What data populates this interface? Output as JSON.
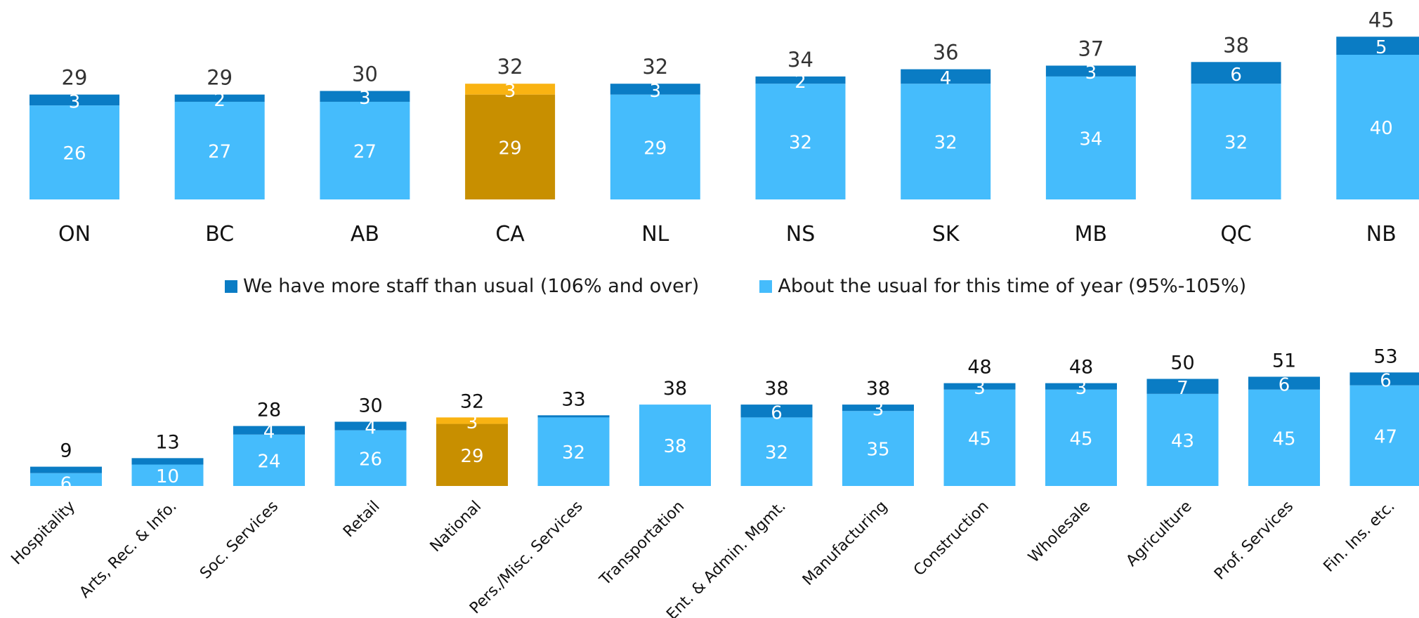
{
  "colors": {
    "more_staff": "#0A7CC4",
    "usual": "#45BCFC",
    "highlight_more": "#F9B312",
    "highlight_usual": "#C88F00",
    "segment_label": "#ffffff",
    "total_label": "#333333",
    "total_label_bottom": "#111111",
    "category_label": "#111111"
  },
  "legend": {
    "more_staff": "We have more staff than usual (106% and over)",
    "usual": "About the usual for this time of year (95%-105%)"
  },
  "chart_data": [
    {
      "type": "bar",
      "stacked": true,
      "categories": [
        "ON",
        "BC",
        "AB",
        "CA",
        "NL",
        "NS",
        "SK",
        "MB",
        "QC",
        "NB"
      ],
      "highlight": "CA",
      "series": [
        {
          "name": "About the usual for this time of year (95%-105%)",
          "values": [
            26,
            27,
            27,
            29,
            29,
            32,
            32,
            34,
            32,
            40
          ]
        },
        {
          "name": "We have more staff than usual (106% and over)",
          "values": [
            3,
            2,
            3,
            3,
            3,
            2,
            4,
            3,
            6,
            5
          ]
        }
      ],
      "totals": [
        29,
        29,
        30,
        32,
        32,
        34,
        36,
        37,
        38,
        45
      ],
      "ylim": [
        0,
        45
      ]
    },
    {
      "type": "bar",
      "stacked": true,
      "categories": [
        "Hospitality",
        "Arts, Rec. & Info.",
        "Soc. Services",
        "Retail",
        "National",
        "Pers./Misc. Services",
        "Transportation",
        "Ent. & Admin. Mgmt.",
        "Manufacturing",
        "Construction",
        "Wholesale",
        "Agriculture",
        "Prof. Services",
        "Fin. Ins. etc."
      ],
      "highlight": "National",
      "series": [
        {
          "name": "About the usual for this time of year (95%-105%)",
          "values": [
            6,
            10,
            24,
            26,
            29,
            32,
            38,
            32,
            35,
            45,
            45,
            43,
            45,
            47
          ]
        },
        {
          "name": "We have more staff than usual (106% and over)",
          "values": [
            3,
            3,
            4,
            4,
            3,
            1,
            0,
            6,
            3,
            3,
            3,
            7,
            6,
            6
          ]
        }
      ],
      "segment_labels_usual": [
        "6",
        "10",
        "24",
        "26",
        "29",
        "32",
        "38",
        "32",
        "35",
        "45",
        "45",
        "43",
        "45",
        "47"
      ],
      "segment_labels_more": [
        "",
        "",
        "4",
        "4",
        "3",
        "",
        "",
        "6",
        "3",
        "3",
        "3",
        "7",
        "6",
        "6"
      ],
      "totals": [
        9,
        13,
        28,
        30,
        32,
        33,
        38,
        38,
        38,
        48,
        48,
        50,
        51,
        53
      ],
      "ylim": [
        0,
        53
      ]
    }
  ]
}
